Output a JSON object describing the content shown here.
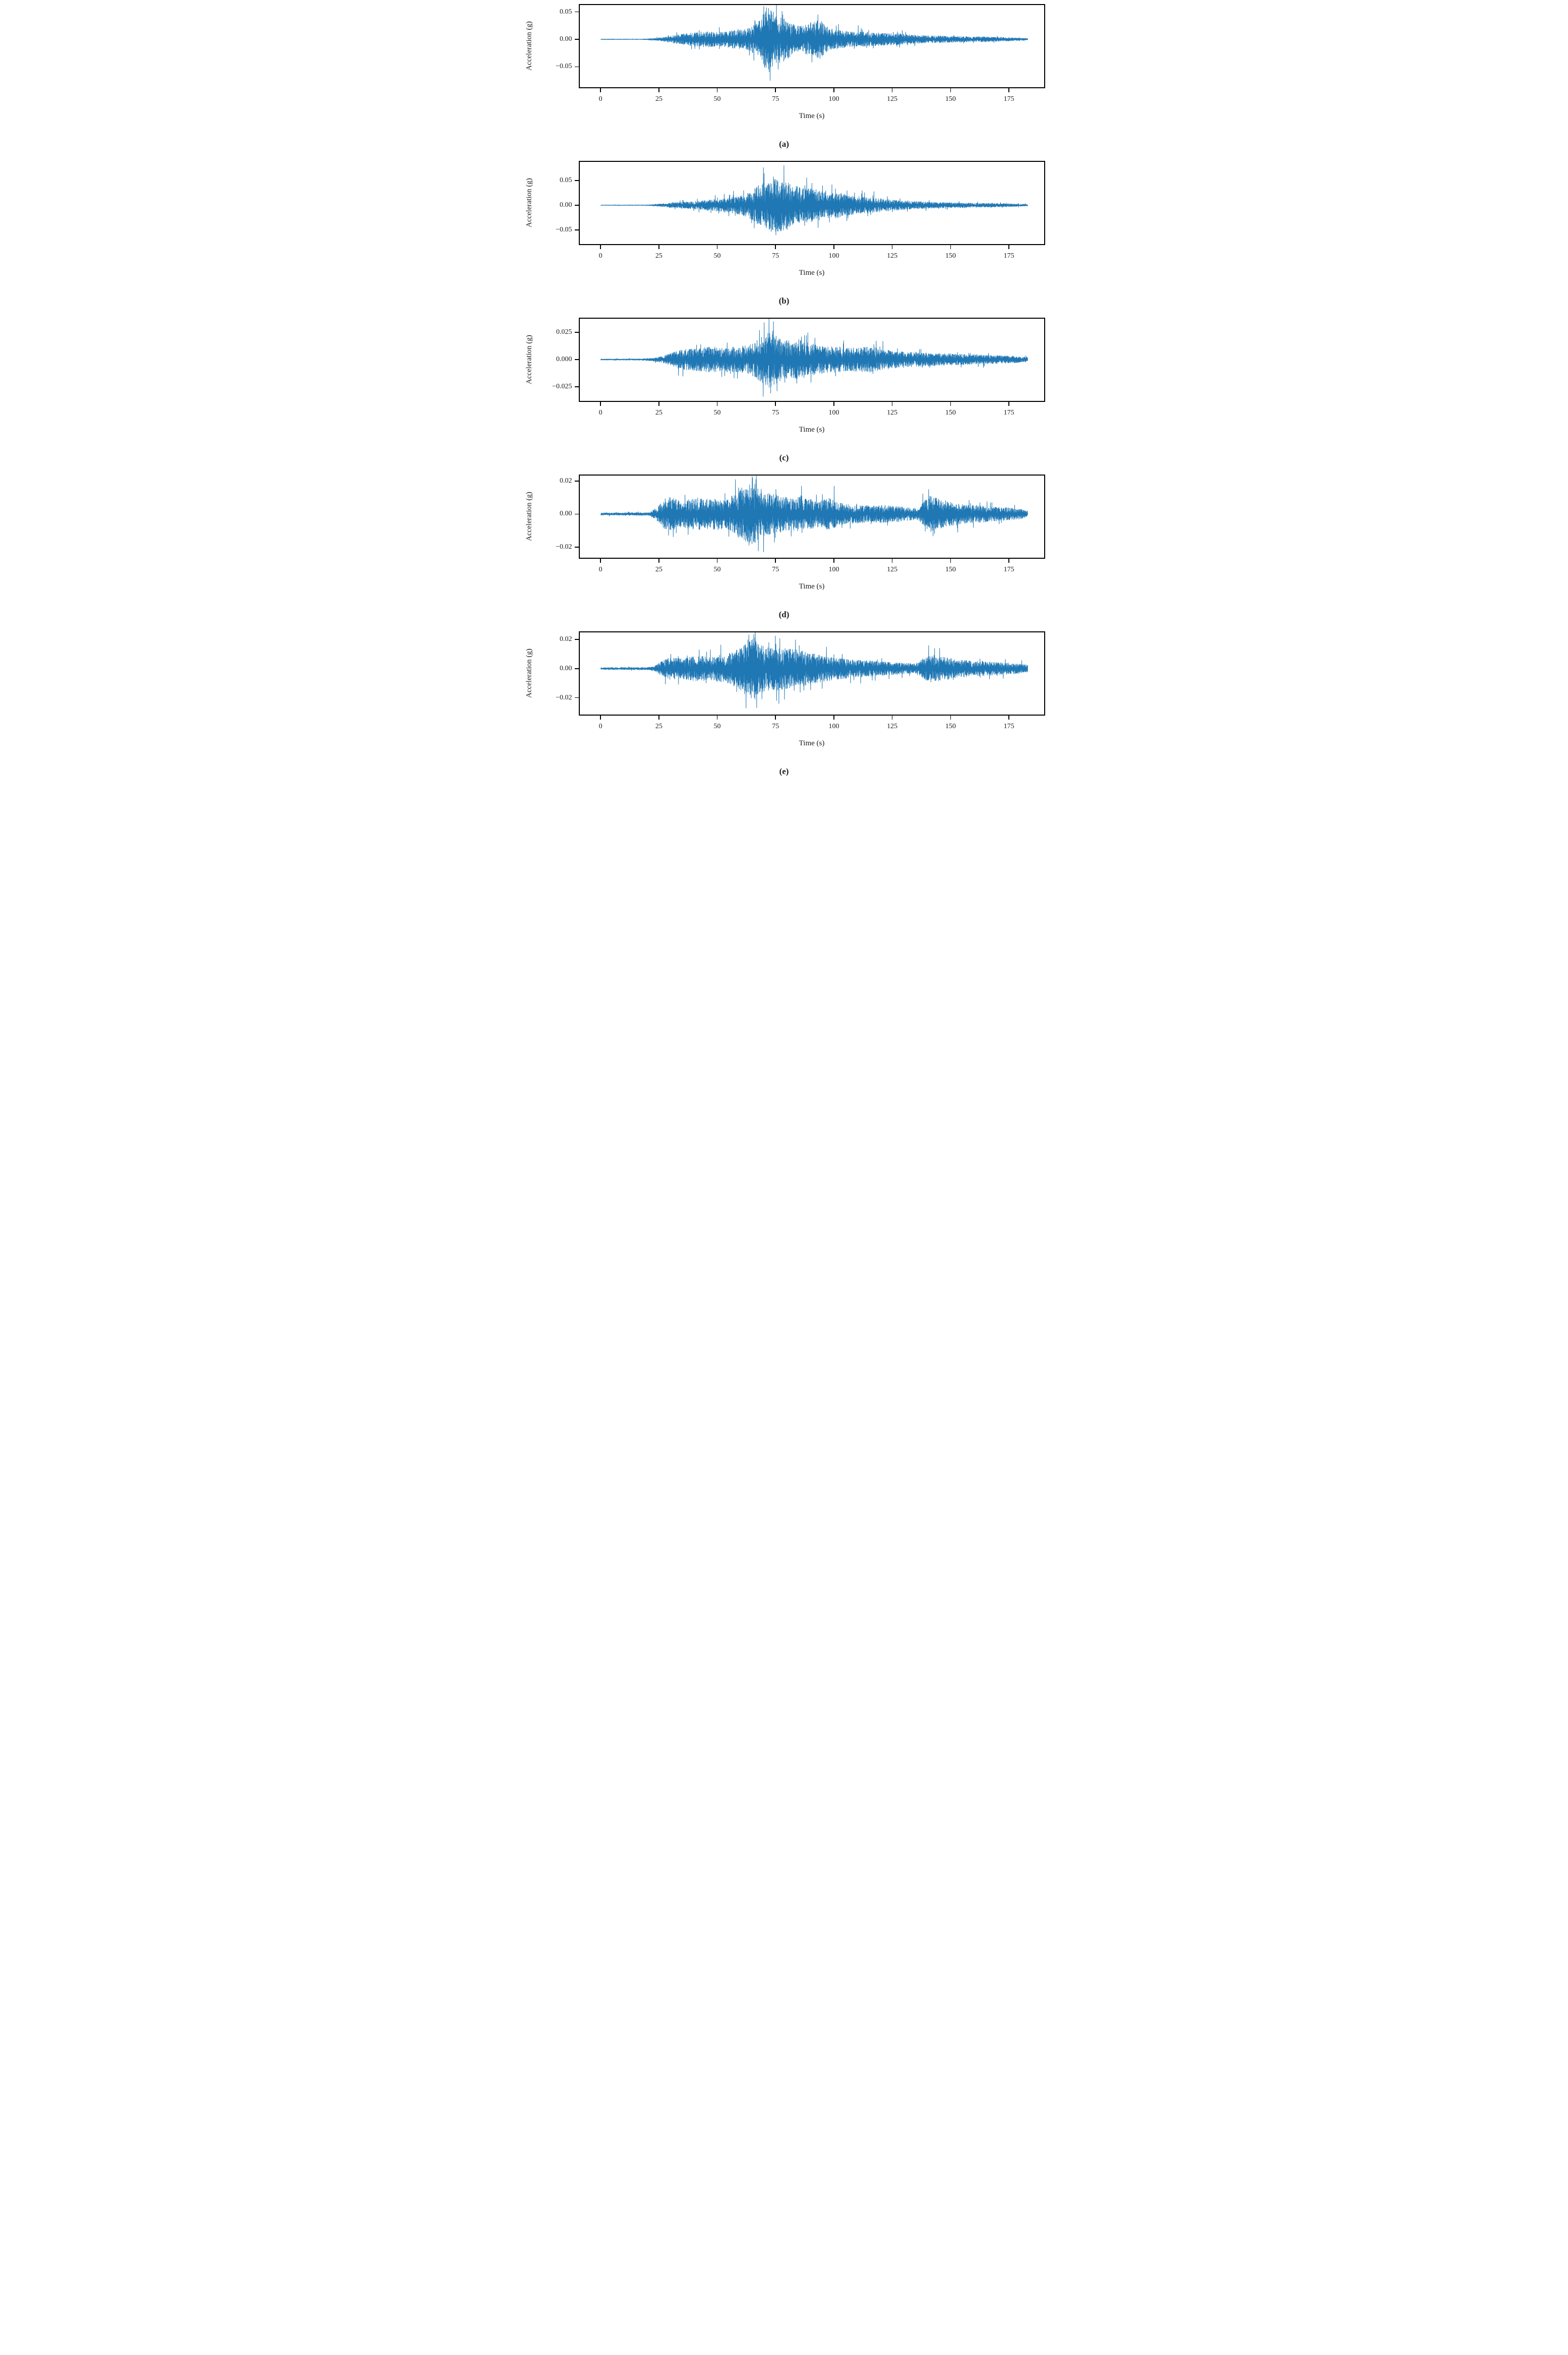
{
  "figure": {
    "background": "#ffffff",
    "axis_color": "#000000",
    "text_color": "#1a1a1a"
  },
  "chart_data": [
    {
      "id": "a",
      "type": "line",
      "caption": "(a)",
      "xlabel": "Time (s)",
      "ylabel": "Acceleration (g)",
      "x_ticks": [
        0,
        25,
        50,
        75,
        100,
        125,
        150,
        175
      ],
      "x_tick_labels": [
        "0",
        "25",
        "50",
        "75",
        "100",
        "125",
        "150",
        "175"
      ],
      "y_ticks": [
        0.05,
        0.0,
        -0.05
      ],
      "y_tick_labels": [
        "0.05",
        "0.00",
        "−0.05"
      ],
      "xlim": [
        -9,
        190
      ],
      "ylim": [
        -0.0875,
        0.0625
      ],
      "line_color": "#1f77b4",
      "grid": false,
      "legend": "none",
      "duration_s": 183,
      "quiet_until_s": 20,
      "peak_positive_g": 0.058,
      "peak_negative_g": -0.0755,
      "envelope_t_amp": [
        [
          0,
          0.0008
        ],
        [
          18,
          0.0008
        ],
        [
          22,
          0.002
        ],
        [
          27,
          0.004
        ],
        [
          32,
          0.008
        ],
        [
          38,
          0.012
        ],
        [
          45,
          0.015
        ],
        [
          52,
          0.013
        ],
        [
          58,
          0.018
        ],
        [
          63,
          0.02
        ],
        [
          67,
          0.03
        ],
        [
          70,
          0.05
        ],
        [
          72,
          0.062
        ],
        [
          75,
          0.045
        ],
        [
          78,
          0.042
        ],
        [
          82,
          0.03
        ],
        [
          86,
          0.025
        ],
        [
          90,
          0.032
        ],
        [
          94,
          0.036
        ],
        [
          98,
          0.02
        ],
        [
          105,
          0.015
        ],
        [
          112,
          0.014
        ],
        [
          120,
          0.012
        ],
        [
          128,
          0.011
        ],
        [
          135,
          0.008
        ],
        [
          142,
          0.007
        ],
        [
          150,
          0.006
        ],
        [
          158,
          0.005
        ],
        [
          165,
          0.005
        ],
        [
          172,
          0.004
        ],
        [
          178,
          0.003
        ],
        [
          183,
          0.002
        ]
      ],
      "peaks_t_g": [
        [
          71,
          0.058
        ],
        [
          72.6,
          -0.0755
        ],
        [
          70.2,
          -0.052
        ],
        [
          74,
          0.05
        ],
        [
          76,
          -0.055
        ],
        [
          78,
          0.045
        ],
        [
          66,
          0.035
        ],
        [
          90.5,
          -0.042
        ],
        [
          93,
          0.045
        ]
      ],
      "seed": 11
    },
    {
      "id": "b",
      "type": "line",
      "caption": "(b)",
      "xlabel": "Time (s)",
      "ylabel": "Acceleration (g)",
      "x_ticks": [
        0,
        25,
        50,
        75,
        100,
        125,
        150,
        175
      ],
      "x_tick_labels": [
        "0",
        "25",
        "50",
        "75",
        "100",
        "125",
        "150",
        "175"
      ],
      "y_ticks": [
        0.05,
        0.0,
        -0.05
      ],
      "y_tick_labels": [
        "0.05",
        "0.00",
        "−0.05"
      ],
      "xlim": [
        -9,
        190
      ],
      "ylim": [
        -0.079,
        0.088
      ],
      "line_color": "#1f77b4",
      "grid": false,
      "legend": "none",
      "duration_s": 183,
      "quiet_until_s": 21,
      "peak_positive_g": 0.081,
      "peak_negative_g": -0.055,
      "envelope_t_amp": [
        [
          0,
          0.0008
        ],
        [
          20,
          0.001
        ],
        [
          25,
          0.003
        ],
        [
          30,
          0.005
        ],
        [
          36,
          0.007
        ],
        [
          42,
          0.009
        ],
        [
          48,
          0.012
        ],
        [
          54,
          0.014
        ],
        [
          60,
          0.02
        ],
        [
          64,
          0.028
        ],
        [
          68,
          0.042
        ],
        [
          72,
          0.05
        ],
        [
          76,
          0.055
        ],
        [
          79,
          0.05
        ],
        [
          83,
          0.04
        ],
        [
          87,
          0.036
        ],
        [
          91,
          0.034
        ],
        [
          95,
          0.032
        ],
        [
          100,
          0.028
        ],
        [
          105,
          0.022
        ],
        [
          110,
          0.018
        ],
        [
          115,
          0.016
        ],
        [
          120,
          0.014
        ],
        [
          126,
          0.011
        ],
        [
          132,
          0.009
        ],
        [
          140,
          0.007
        ],
        [
          148,
          0.006
        ],
        [
          156,
          0.005
        ],
        [
          164,
          0.0045
        ],
        [
          172,
          0.004
        ],
        [
          178,
          0.003
        ],
        [
          183,
          0.002
        ]
      ],
      "peaks_t_g": [
        [
          78.5,
          0.081
        ],
        [
          70,
          0.065
        ],
        [
          74,
          0.058
        ],
        [
          73,
          -0.054
        ],
        [
          79.8,
          -0.05
        ],
        [
          76.5,
          -0.048
        ],
        [
          95,
          0.04
        ],
        [
          99,
          0.042
        ],
        [
          98,
          -0.035
        ],
        [
          112,
          0.03
        ],
        [
          117,
          0.028
        ]
      ],
      "seed": 22
    },
    {
      "id": "c",
      "type": "line",
      "caption": "(c)",
      "xlabel": "Time (s)",
      "ylabel": "Acceleration (g)",
      "x_ticks": [
        0,
        25,
        50,
        75,
        100,
        125,
        150,
        175
      ],
      "x_tick_labels": [
        "0",
        "25",
        "50",
        "75",
        "100",
        "125",
        "150",
        "175"
      ],
      "y_ticks": [
        0.025,
        0.0,
        -0.025
      ],
      "y_tick_labels": [
        "0.025",
        "0.000",
        "−0.025"
      ],
      "xlim": [
        -9,
        190
      ],
      "ylim": [
        -0.038,
        0.0375
      ],
      "line_color": "#1f77b4",
      "grid": false,
      "legend": "none",
      "duration_s": 183,
      "quiet_until_s": 20,
      "peak_positive_g": 0.035,
      "peak_negative_g": -0.031,
      "envelope_t_amp": [
        [
          0,
          0.0006
        ],
        [
          17,
          0.0008
        ],
        [
          22,
          0.0015
        ],
        [
          26,
          0.003
        ],
        [
          30,
          0.006
        ],
        [
          34,
          0.009
        ],
        [
          38,
          0.01
        ],
        [
          43,
          0.011
        ],
        [
          48,
          0.012
        ],
        [
          53,
          0.011
        ],
        [
          58,
          0.012
        ],
        [
          62,
          0.013
        ],
        [
          66,
          0.016
        ],
        [
          69,
          0.022
        ],
        [
          72,
          0.026
        ],
        [
          75,
          0.023
        ],
        [
          78,
          0.018
        ],
        [
          82,
          0.017
        ],
        [
          85,
          0.019
        ],
        [
          88,
          0.016
        ],
        [
          92,
          0.014
        ],
        [
          96,
          0.013
        ],
        [
          100,
          0.012
        ],
        [
          105,
          0.011
        ],
        [
          110,
          0.011
        ],
        [
          115,
          0.012
        ],
        [
          120,
          0.01
        ],
        [
          126,
          0.008
        ],
        [
          132,
          0.007
        ],
        [
          138,
          0.0065
        ],
        [
          144,
          0.006
        ],
        [
          150,
          0.0055
        ],
        [
          156,
          0.005
        ],
        [
          162,
          0.0045
        ],
        [
          168,
          0.004
        ],
        [
          174,
          0.0035
        ],
        [
          180,
          0.003
        ],
        [
          183,
          0.0025
        ]
      ],
      "peaks_t_g": [
        [
          70,
          0.034
        ],
        [
          74,
          0.035
        ],
        [
          72.8,
          -0.031
        ],
        [
          75.5,
          -0.029
        ],
        [
          68,
          0.027
        ],
        [
          86,
          0.021
        ],
        [
          84,
          -0.022
        ],
        [
          117,
          0.014
        ]
      ],
      "seed": 33
    },
    {
      "id": "d",
      "type": "line",
      "caption": "(d)",
      "xlabel": "Time (s)",
      "ylabel": "Acceleration (g)",
      "x_ticks": [
        0,
        25,
        50,
        75,
        100,
        125,
        150,
        175
      ],
      "x_tick_labels": [
        "0",
        "25",
        "50",
        "75",
        "100",
        "125",
        "150",
        "175"
      ],
      "y_ticks": [
        0.02,
        0.0,
        -0.02
      ],
      "y_tick_labels": [
        "0.02",
        "0.00",
        "−0.02"
      ],
      "xlim": [
        -9,
        190
      ],
      "ylim": [
        -0.0265,
        0.0233
      ],
      "line_color": "#1f77b4",
      "grid": false,
      "legend": "none",
      "duration_s": 183,
      "quiet_until_s": 21,
      "peak_positive_g": 0.022,
      "peak_negative_g": -0.0225,
      "envelope_t_amp": [
        [
          0,
          0.0008
        ],
        [
          21,
          0.001
        ],
        [
          24,
          0.004
        ],
        [
          27,
          0.009
        ],
        [
          29,
          0.011
        ],
        [
          31,
          0.01
        ],
        [
          34,
          0.008
        ],
        [
          38,
          0.009
        ],
        [
          42,
          0.01
        ],
        [
          46,
          0.009
        ],
        [
          50,
          0.01
        ],
        [
          54,
          0.009
        ],
        [
          57,
          0.012
        ],
        [
          60,
          0.016
        ],
        [
          63,
          0.018
        ],
        [
          66,
          0.019
        ],
        [
          68,
          0.016
        ],
        [
          71,
          0.013
        ],
        [
          74,
          0.012
        ],
        [
          78,
          0.011
        ],
        [
          82,
          0.01
        ],
        [
          86,
          0.012
        ],
        [
          90,
          0.009
        ],
        [
          94,
          0.008
        ],
        [
          98,
          0.01
        ],
        [
          102,
          0.007
        ],
        [
          107,
          0.006
        ],
        [
          112,
          0.0055
        ],
        [
          117,
          0.005
        ],
        [
          122,
          0.0055
        ],
        [
          127,
          0.005
        ],
        [
          132,
          0.004
        ],
        [
          136,
          0.0035
        ],
        [
          139,
          0.009
        ],
        [
          141,
          0.011
        ],
        [
          144,
          0.01
        ],
        [
          147,
          0.008
        ],
        [
          151,
          0.007
        ],
        [
          155,
          0.006
        ],
        [
          160,
          0.0055
        ],
        [
          165,
          0.005
        ],
        [
          170,
          0.0045
        ],
        [
          175,
          0.004
        ],
        [
          180,
          0.003
        ],
        [
          183,
          0.002
        ]
      ],
      "peaks_t_g": [
        [
          65,
          0.022
        ],
        [
          66.5,
          0.021
        ],
        [
          67.5,
          -0.0225
        ],
        [
          63.5,
          -0.019
        ],
        [
          86,
          0.017
        ],
        [
          100,
          0.017
        ],
        [
          75,
          0.015
        ],
        [
          59,
          0.016
        ],
        [
          140.5,
          0.015
        ],
        [
          143,
          -0.012
        ],
        [
          29,
          -0.013
        ]
      ],
      "seed": 44
    },
    {
      "id": "e",
      "type": "line",
      "caption": "(e)",
      "xlabel": "Time (s)",
      "ylabel": "Acceleration (g)",
      "x_ticks": [
        0,
        25,
        50,
        75,
        100,
        125,
        150,
        175
      ],
      "x_tick_labels": [
        "0",
        "25",
        "50",
        "75",
        "100",
        "125",
        "150",
        "175"
      ],
      "y_ticks": [
        0.02,
        0.0,
        -0.02
      ],
      "y_tick_labels": [
        "0.02",
        "0.00",
        "−0.02"
      ],
      "xlim": [
        -9,
        190
      ],
      "ylim": [
        -0.0316,
        0.0249
      ],
      "line_color": "#1f77b4",
      "grid": false,
      "legend": "none",
      "duration_s": 183,
      "quiet_until_s": 21,
      "peak_positive_g": 0.0235,
      "peak_negative_g": -0.027,
      "envelope_t_amp": [
        [
          0,
          0.0008
        ],
        [
          21,
          0.001
        ],
        [
          24,
          0.003
        ],
        [
          27,
          0.006
        ],
        [
          30,
          0.008
        ],
        [
          34,
          0.007
        ],
        [
          38,
          0.008
        ],
        [
          42,
          0.009
        ],
        [
          46,
          0.008
        ],
        [
          50,
          0.009
        ],
        [
          54,
          0.01
        ],
        [
          58,
          0.013
        ],
        [
          61,
          0.016
        ],
        [
          64,
          0.02
        ],
        [
          66,
          0.022
        ],
        [
          68,
          0.018
        ],
        [
          71,
          0.015
        ],
        [
          74,
          0.016
        ],
        [
          77,
          0.015
        ],
        [
          80,
          0.014
        ],
        [
          84,
          0.013
        ],
        [
          88,
          0.012
        ],
        [
          92,
          0.01
        ],
        [
          96,
          0.009
        ],
        [
          100,
          0.008
        ],
        [
          105,
          0.007
        ],
        [
          110,
          0.006
        ],
        [
          115,
          0.0055
        ],
        [
          120,
          0.005
        ],
        [
          125,
          0.0045
        ],
        [
          130,
          0.004
        ],
        [
          135,
          0.0035
        ],
        [
          139,
          0.008
        ],
        [
          141,
          0.01
        ],
        [
          144,
          0.009
        ],
        [
          147,
          0.008
        ],
        [
          151,
          0.007
        ],
        [
          155,
          0.006
        ],
        [
          160,
          0.0055
        ],
        [
          165,
          0.005
        ],
        [
          170,
          0.0045
        ],
        [
          175,
          0.004
        ],
        [
          179,
          0.0035
        ],
        [
          183,
          0.0025
        ]
      ],
      "peaks_t_g": [
        [
          65.5,
          0.0235
        ],
        [
          66.8,
          -0.027
        ],
        [
          63,
          0.02
        ],
        [
          69,
          -0.021
        ],
        [
          72,
          0.018
        ],
        [
          75,
          0.017
        ],
        [
          85,
          0.016
        ],
        [
          87,
          -0.015
        ],
        [
          140.5,
          0.016
        ],
        [
          143,
          0.014
        ],
        [
          30,
          0.01
        ]
      ],
      "seed": 55
    }
  ]
}
